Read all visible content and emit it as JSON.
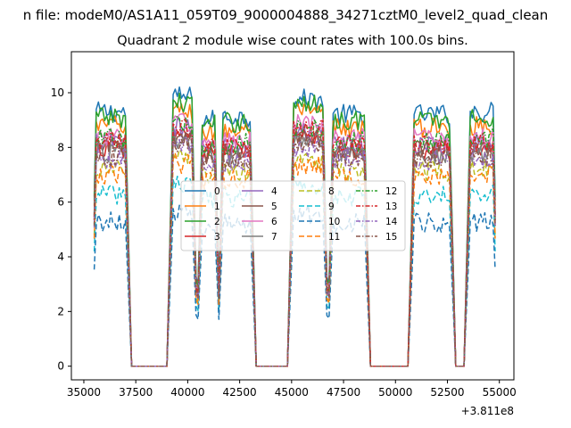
{
  "suptitle": "n file: modeM0/AS1A11_059T09_9000004888_34271cztM0_level2_quad_clean",
  "chart_data": {
    "type": "line",
    "title": "Quadrant 2 module wise count rates with 100.0s bins.",
    "xlabel": "",
    "ylabel": "",
    "x_offset_label": "+3.811e8",
    "xlim": [
      34400,
      55700
    ],
    "ylim": [
      -0.5,
      11.5
    ],
    "xticks": [
      35000,
      37500,
      40000,
      42500,
      45000,
      47500,
      50000,
      52500,
      55000
    ],
    "xtick_labels": [
      "35000",
      "37500",
      "40000",
      "42500",
      "45000",
      "47500",
      "50000",
      "52500",
      "55000"
    ],
    "yticks": [
      0,
      2,
      4,
      6,
      8,
      10
    ],
    "ytick_labels": [
      "0",
      "2",
      "4",
      "6",
      "8",
      "10"
    ],
    "grid": false,
    "legend_placement": "center",
    "legend_columns": 4,
    "x_range": [
      35500,
      54800
    ],
    "bin_seconds": 100,
    "on_segments": [
      {
        "x": [
          35600,
          37000
        ],
        "scale": 1.0
      },
      {
        "x": [
          39300,
          40200
        ],
        "scale": 1.06
      },
      {
        "x": [
          40700,
          41300
        ],
        "scale": 0.97
      },
      {
        "x": [
          41700,
          43000
        ],
        "scale": 0.98
      },
      {
        "x": [
          45100,
          46500
        ],
        "scale": 1.05
      },
      {
        "x": [
          47000,
          48500
        ],
        "scale": 0.99
      },
      {
        "x": [
          50900,
          52600
        ],
        "scale": 0.99
      },
      {
        "x": [
          53600,
          54700
        ],
        "scale": 1.0
      }
    ],
    "gap_low": 0.0,
    "series": [
      {
        "name": "0",
        "color": "#1f77b4",
        "dash": "solid",
        "level": 9.3
      },
      {
        "name": "1",
        "color": "#ff7f0e",
        "dash": "solid",
        "level": 8.8
      },
      {
        "name": "2",
        "color": "#2ca02c",
        "dash": "solid",
        "level": 9.1
      },
      {
        "name": "3",
        "color": "#d62728",
        "dash": "solid",
        "level": 8.0
      },
      {
        "name": "4",
        "color": "#9467bd",
        "dash": "solid",
        "level": 8.2
      },
      {
        "name": "5",
        "color": "#8c564b",
        "dash": "solid",
        "level": 8.0
      },
      {
        "name": "6",
        "color": "#e377c2",
        "dash": "solid",
        "level": 8.4
      },
      {
        "name": "7",
        "color": "#7f7f7f",
        "dash": "solid",
        "level": 7.8
      },
      {
        "name": "8",
        "color": "#bcbd22",
        "dash": "dashed",
        "level": 7.2
      },
      {
        "name": "9",
        "color": "#17becf",
        "dash": "dashed",
        "level": 6.3
      },
      {
        "name": "10",
        "color": "#1f77b4",
        "dash": "dashed",
        "level": 5.3
      },
      {
        "name": "11",
        "color": "#ff7f0e",
        "dash": "dashed",
        "level": 7.0
      },
      {
        "name": "12",
        "color": "#2ca02c",
        "dash": "dashdot",
        "level": 8.3
      },
      {
        "name": "13",
        "color": "#d62728",
        "dash": "dashdot",
        "level": 8.2
      },
      {
        "name": "14",
        "color": "#9467bd",
        "dash": "dashdot",
        "level": 7.6
      },
      {
        "name": "15",
        "color": "#8c564b",
        "dash": "dashdot",
        "level": 7.7
      }
    ]
  }
}
